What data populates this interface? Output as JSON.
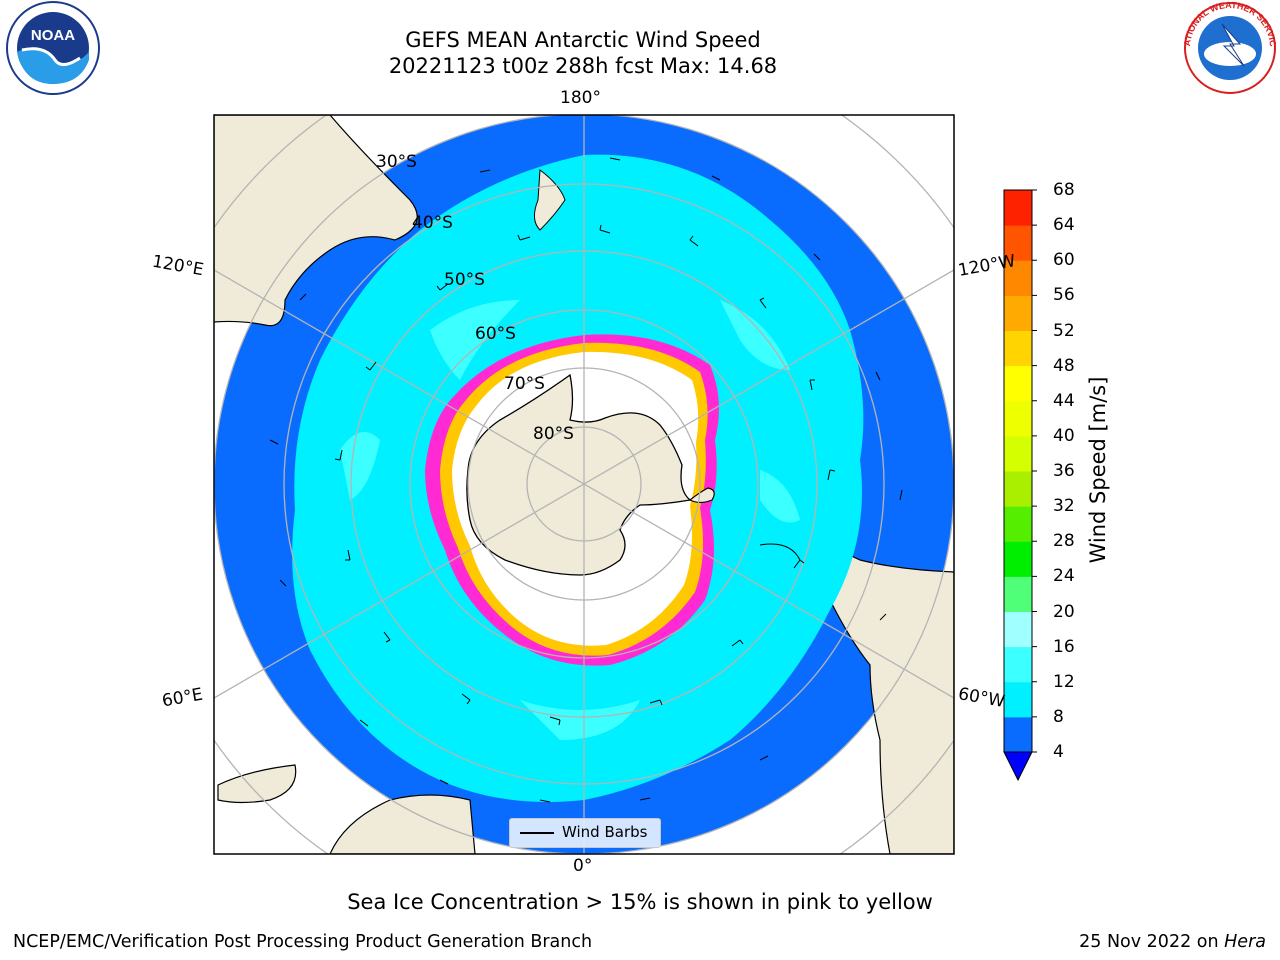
{
  "header": {
    "title_line1": "GEFS MEAN Antarctic Wind Speed",
    "title_line2": "20221123 t00z 288h fcst   Max: 14.68"
  },
  "logos": {
    "noaa": {
      "icon": "noaa-logo",
      "text": "NOAA"
    },
    "nws": {
      "icon": "nws-logo",
      "text": "NATIONAL WEATHER SERVICE"
    }
  },
  "map": {
    "projection": "south-polar-stereographic",
    "meridian_labels": {
      "top": "180°",
      "bottom": "0°",
      "upper_left": "120°E",
      "upper_right": "120°W",
      "lower_left": "60°E",
      "lower_right": "60°W"
    },
    "latitude_labels": [
      "30°S",
      "40°S",
      "50°S",
      "60°S",
      "70°S",
      "80°S"
    ],
    "legend_label": "Wind Barbs",
    "colors": {
      "ocean_4_8": "#0a6cff",
      "ocean_8_12": "#00f0ff",
      "ocean_12_16": "#3cffff",
      "land": "#efebd8",
      "sea_ice_low": "#ff2ad4",
      "sea_ice_high": "#ffc800",
      "grid": "#b4b4b4"
    }
  },
  "colorbar": {
    "title": "Wind Speed [m/s]",
    "ticks": [
      "4",
      "8",
      "12",
      "16",
      "20",
      "24",
      "28",
      "32",
      "36",
      "40",
      "44",
      "48",
      "52",
      "56",
      "60",
      "64",
      "68"
    ],
    "colors": [
      "#0a6cff",
      "#00f0ff",
      "#3cffff",
      "#a0ffff",
      "#50ff78",
      "#00ee00",
      "#55ee00",
      "#aaee00",
      "#d4ff00",
      "#eeff00",
      "#ffff00",
      "#ffd400",
      "#ffaa00",
      "#ff8800",
      "#ff5500",
      "#ff2200"
    ],
    "under_color": "#0000ff"
  },
  "footer": {
    "note": "Sea Ice Concentration > 15% is shown in pink to yellow",
    "left": "NCEP/EMC/Verification Post Processing Product Generation Branch",
    "right_prefix": "25 Nov 2022 on ",
    "right_host": "Hera"
  }
}
